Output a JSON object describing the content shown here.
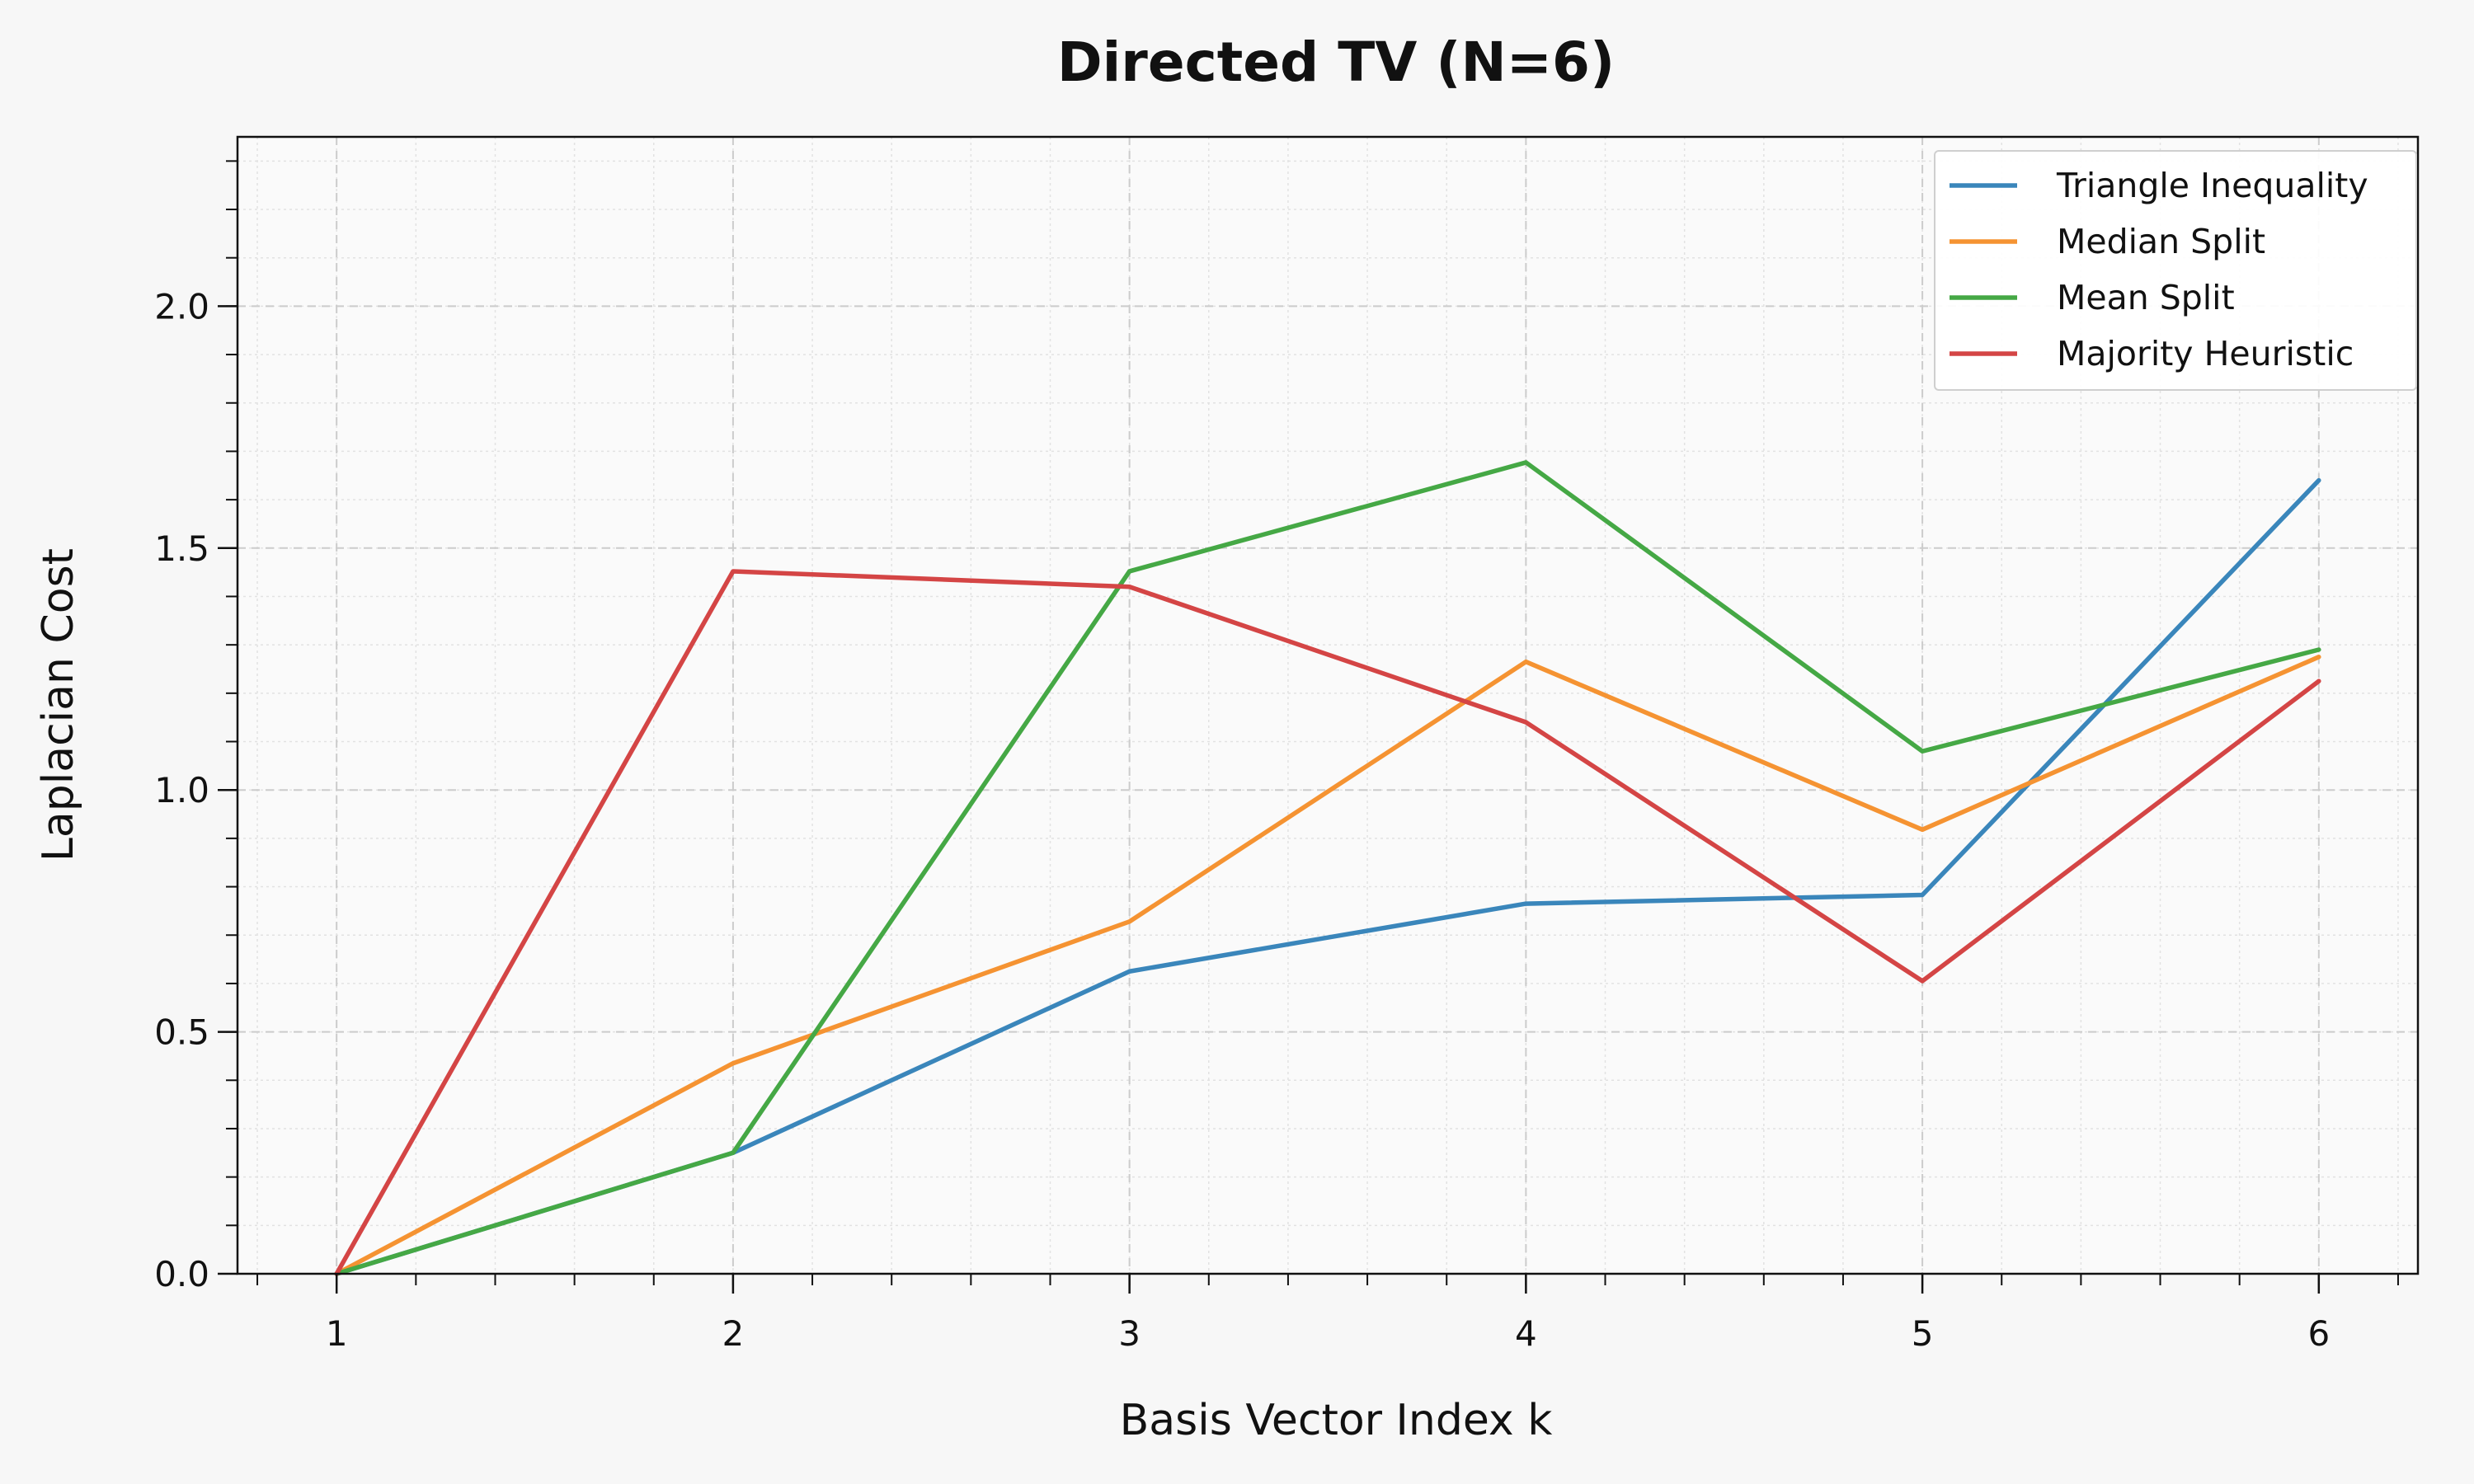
{
  "chart_data": {
    "type": "line",
    "title": "Directed TV (N=6)",
    "xlabel": "Basis Vector Index k",
    "ylabel": "Laplacian Cost",
    "x": [
      1,
      2,
      3,
      4,
      5,
      6
    ],
    "xlim": [
      0.75,
      6.25
    ],
    "ylim": [
      0.0,
      2.35
    ],
    "xticks": [
      "1",
      "2",
      "3",
      "4",
      "5",
      "6"
    ],
    "yticks": [
      "0.0",
      "0.5",
      "1.0",
      "1.5",
      "2.0"
    ],
    "grid": true,
    "legend_position": "top-right",
    "series": [
      {
        "name": "Triangle Inequality",
        "color": "#3a86bb",
        "values": [
          0.0,
          0.25,
          0.625,
          0.765,
          0.783,
          1.64
        ]
      },
      {
        "name": "Median Split",
        "color": "#f59332",
        "values": [
          0.0,
          0.435,
          0.728,
          1.265,
          0.918,
          1.275
        ]
      },
      {
        "name": "Mean Split",
        "color": "#45a845",
        "values": [
          0.0,
          0.25,
          1.452,
          1.677,
          1.08,
          1.29
        ]
      },
      {
        "name": "Majority Heuristic",
        "color": "#d44545",
        "values": [
          0.0,
          1.452,
          1.42,
          1.14,
          0.605,
          1.225
        ]
      }
    ]
  }
}
